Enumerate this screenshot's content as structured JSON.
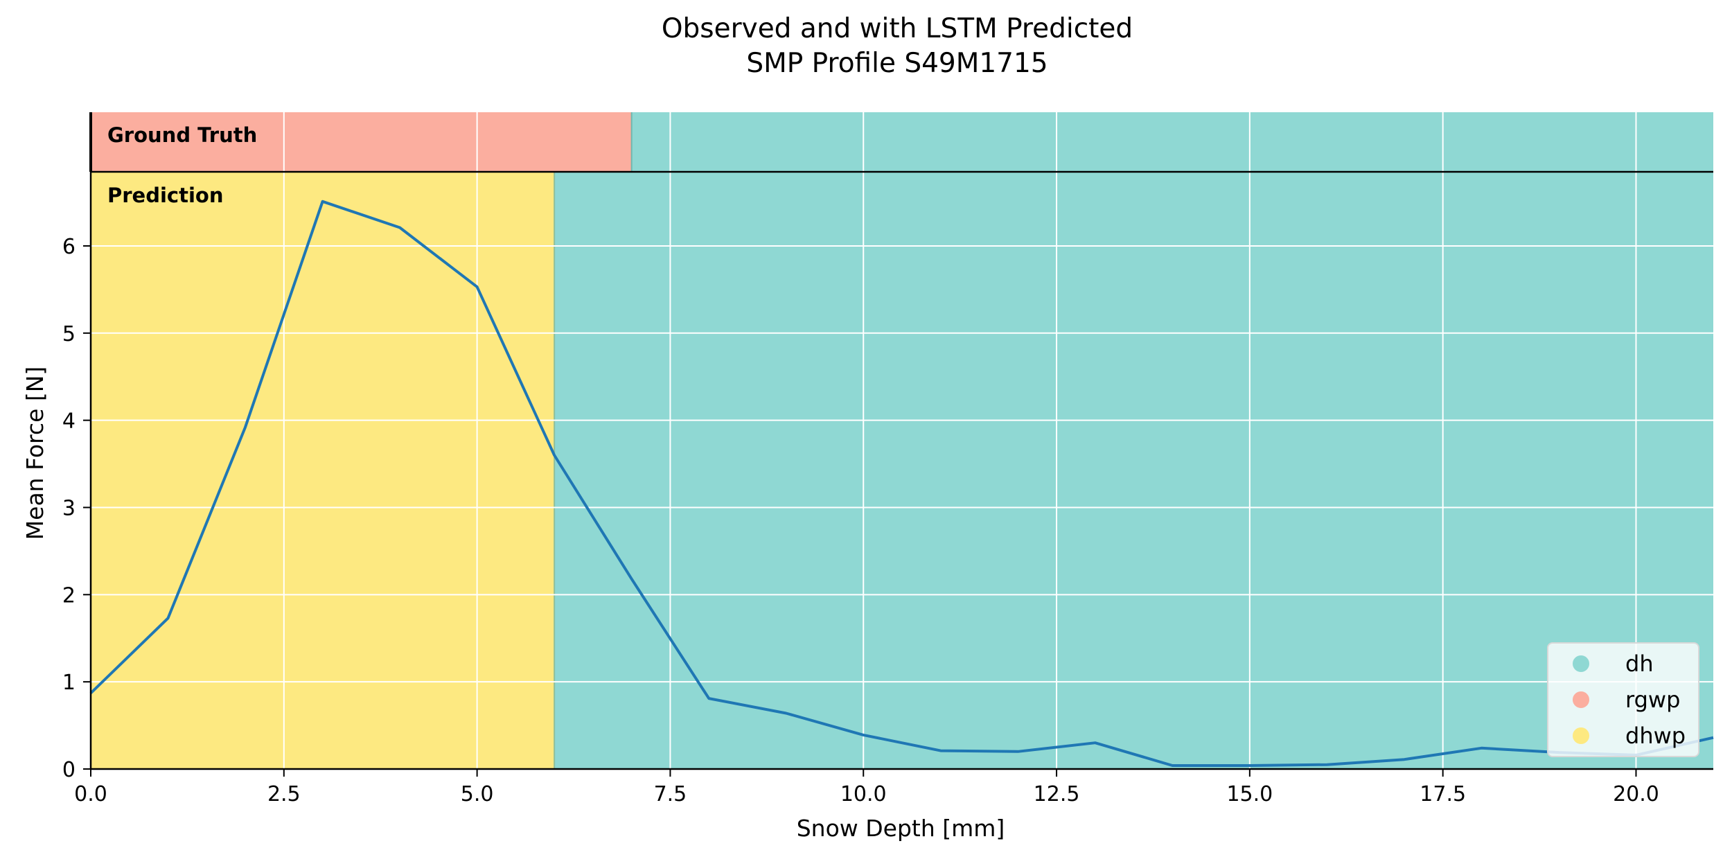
{
  "chart_data": {
    "type": "line",
    "title_lines": [
      "Observed and with LSTM Predicted",
      "SMP Profile S49M1715"
    ],
    "xlabel": "Snow Depth [mm]",
    "ylabel": "Mean Force [N]",
    "xlim": [
      0,
      21
    ],
    "ylim": [
      0,
      6.85
    ],
    "xticks": [
      0,
      2.5,
      5,
      7.5,
      10,
      12.5,
      15,
      17.5,
      20
    ],
    "xtick_labels": [
      "0.0",
      "2.5",
      "5.0",
      "7.5",
      "10.0",
      "12.5",
      "15.0",
      "17.5",
      "20.0"
    ],
    "yticks": [
      0,
      1,
      2,
      3,
      4,
      5,
      6
    ],
    "ytick_labels": [
      "0",
      "1",
      "2",
      "3",
      "4",
      "5",
      "6"
    ],
    "grid": true,
    "legend_position": "bottom-right",
    "series": [
      {
        "color": "#1f77b4",
        "x": [
          0,
          1,
          2,
          3,
          4,
          5,
          6,
          7,
          8,
          9,
          10,
          11,
          12,
          13,
          14,
          15,
          16,
          17,
          18,
          19,
          20,
          21
        ],
        "y": [
          0.87,
          1.73,
          3.92,
          6.51,
          6.21,
          5.53,
          3.6,
          2.18,
          0.81,
          0.64,
          0.39,
          0.21,
          0.2,
          0.3,
          0.04,
          0.04,
          0.05,
          0.11,
          0.24,
          0.19,
          0.16,
          0.36
        ]
      }
    ],
    "ground_truth": {
      "label": "Ground Truth",
      "segments": [
        {
          "class": "rgwp",
          "start": 0,
          "end": 7
        },
        {
          "class": "dh",
          "start": 7,
          "end": 21
        }
      ]
    },
    "prediction": {
      "label": "Prediction",
      "segments": [
        {
          "class": "dhwp",
          "start": 0,
          "end": 6
        },
        {
          "class": "dh",
          "start": 6,
          "end": 21
        }
      ]
    },
    "legend": [
      {
        "label": "dh",
        "color": "#8fd8d3"
      },
      {
        "label": "rgwp",
        "color": "#fbae9f"
      },
      {
        "label": "dhwp",
        "color": "#fde981"
      }
    ],
    "class_colors": {
      "dh": "#8fd8d3",
      "rgwp": "#fbae9f",
      "dhwp": "#fde981"
    }
  }
}
